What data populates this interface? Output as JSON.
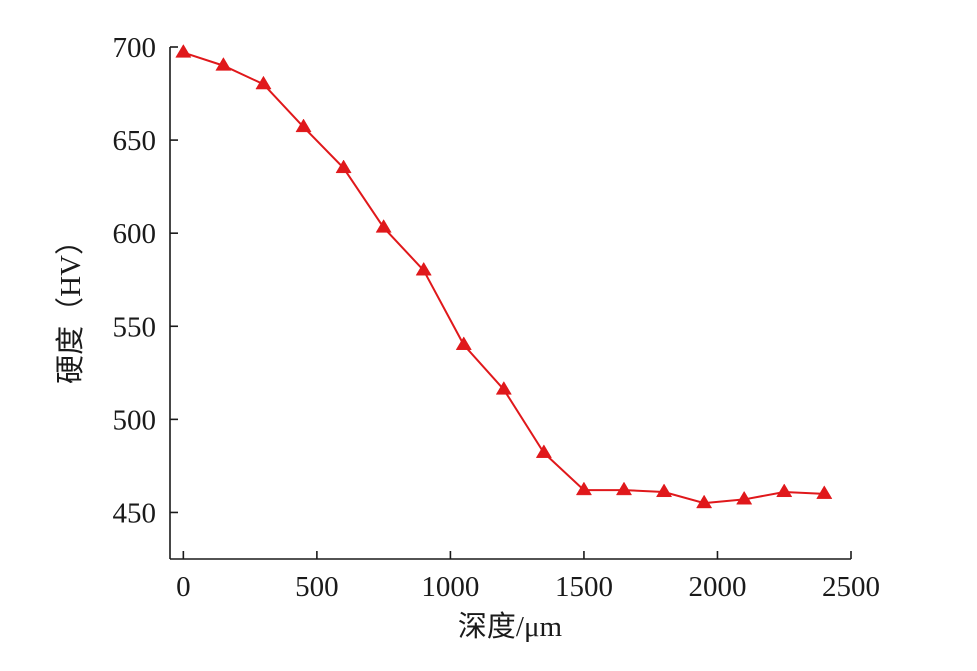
{
  "chart_data": {
    "type": "line",
    "title": "",
    "xlabel": "深度/μm",
    "ylabel": "硬度（HV）",
    "xlim": [
      -50,
      2500
    ],
    "ylim": [
      425,
      700
    ],
    "xticks": [
      0,
      500,
      1000,
      1500,
      2000,
      2500
    ],
    "yticks": [
      450,
      500,
      550,
      600,
      650,
      700
    ],
    "xtick_labels": [
      "0",
      "500",
      "1000",
      "1500",
      "2000",
      "2500"
    ],
    "ytick_labels": [
      "450",
      "500",
      "550",
      "600",
      "650",
      "700"
    ],
    "grid": false,
    "legend": "none",
    "series": [
      {
        "marker": "triangle",
        "color": "#e0181b",
        "x": [
          0,
          150,
          300,
          450,
          600,
          750,
          900,
          1050,
          1200,
          1350,
          1500,
          1650,
          1800,
          1950,
          2100,
          2250,
          2400
        ],
        "y": [
          697,
          690,
          680,
          657,
          635,
          603,
          580,
          540,
          516,
          482,
          462,
          462,
          461,
          455,
          457,
          461,
          460
        ]
      }
    ]
  }
}
